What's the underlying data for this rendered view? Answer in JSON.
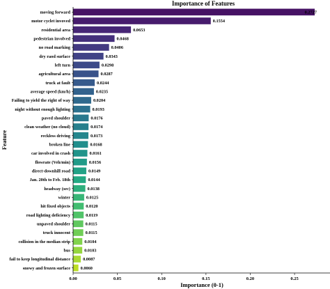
{
  "chart_data": {
    "type": "bar",
    "orientation": "horizontal",
    "title": "Importance of Features",
    "xlabel": "Importance (0-1)",
    "ylabel": "Feature",
    "xlim": [
      0,
      0.29
    ],
    "xticks": [
      "0.00",
      "0.05",
      "0.10",
      "0.15",
      "0.20",
      "0.25"
    ],
    "categories": [
      "moving forward",
      "motor cyclet invoved",
      "residential area",
      "pedestrian involved",
      "no road marking",
      "dry raod surface",
      "left turn",
      "agricultural area",
      "truck at fault",
      "average speed (km/h)",
      "Failing to yield the right of way",
      "night without enough lighting",
      "paved shoulder",
      "clean weather (no cloud)",
      "reckless driving",
      "broken line",
      "car involved in crash",
      "flowrate (Veh/min)",
      "direct-downhill road",
      "Jan. 20th to Feb. 18th",
      "headway (sec)",
      "winter",
      "hit fixed objects",
      "road lighting deficiency",
      "unpaved shoulder",
      "truck innocent",
      "collision in the median strip",
      "bus",
      "fail to keep longitudinal distance",
      "snowy and frozen surface"
    ],
    "values": [
      0.2727,
      0.1554,
      0.0653,
      0.0468,
      0.0406,
      0.0343,
      0.0298,
      0.0287,
      0.0244,
      0.0235,
      0.0204,
      0.0193,
      0.0176,
      0.0174,
      0.0173,
      0.0168,
      0.0161,
      0.0156,
      0.0149,
      0.0144,
      0.0138,
      0.0125,
      0.012,
      0.0119,
      0.0115,
      0.0115,
      0.0104,
      0.0103,
      0.0087,
      0.006
    ],
    "value_labels": [
      "0.2727",
      "0.1554",
      "0.0653",
      "0.0468",
      "0.0406",
      "0.0343",
      "0.0298",
      "0.0287",
      "0.0244",
      "0.0235",
      "0.0204",
      "0.0193",
      "0.0176",
      "0.0174",
      "0.0173",
      "0.0168",
      "0.0161",
      "0.0156",
      "0.0149",
      "0.0144",
      "0.0138",
      "0.0125",
      "0.0120",
      "0.0119",
      "0.0115",
      "0.0115",
      "0.0104",
      "0.0103",
      "0.0087",
      "0.0060"
    ],
    "colormap": "viridis",
    "grid": false,
    "legend": "none"
  }
}
